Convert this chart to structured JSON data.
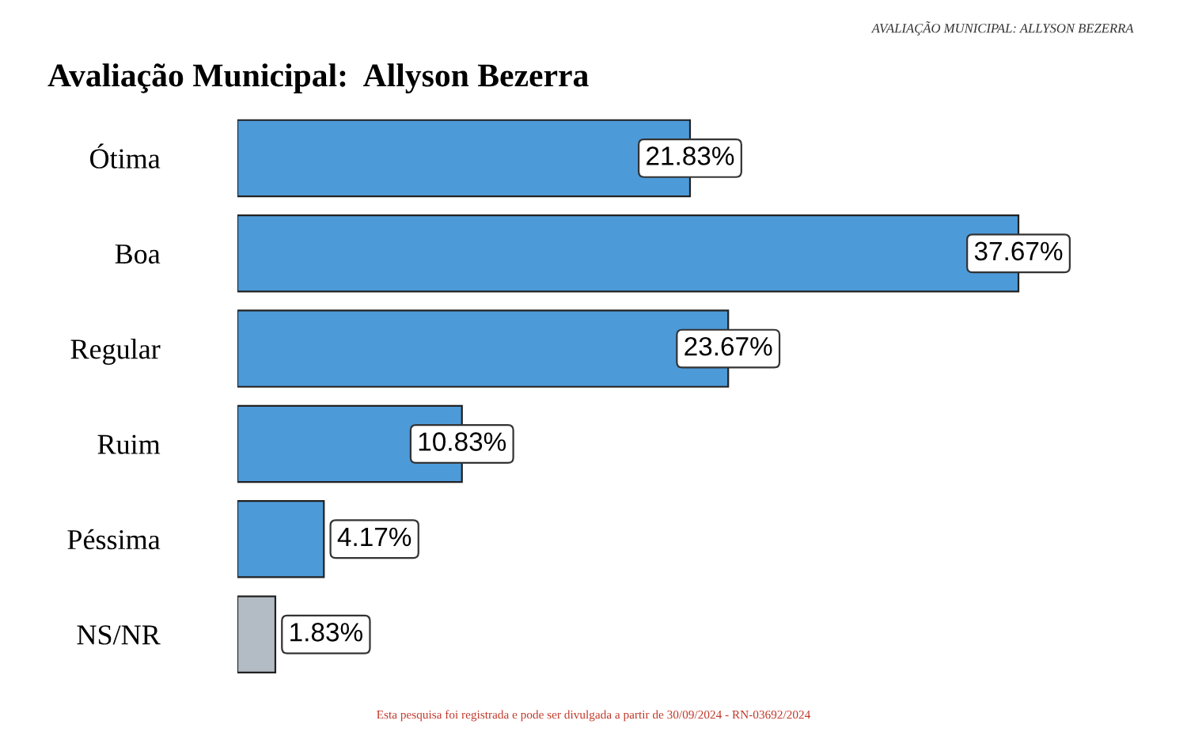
{
  "chart_data": {
    "type": "bar",
    "orientation": "horizontal",
    "title": "Avaliação Municipal:  Allyson Bezerra",
    "categories": [
      "Ótima",
      "Boa",
      "Regular",
      "Ruim",
      "Péssima",
      "NS/NR"
    ],
    "values": [
      21.83,
      37.67,
      23.67,
      10.83,
      4.17,
      1.83
    ],
    "value_labels": [
      "21.83%",
      "37.67%",
      "23.67%",
      "10.83%",
      "4.17%",
      "1.83%"
    ],
    "colors": [
      "#4d9ad8",
      "#4d9ad8",
      "#4d9ad8",
      "#4d9ad8",
      "#4d9ad8",
      "#b3bcc5"
    ],
    "annotations": [
      "AVALIAÇÃO MUNICIPAL: ALLYSON BEZERRA",
      "Esta pesquisa foi registrada e pode ser divulgada a partir de 30/09/2024 - RN-03692/2024"
    ],
    "grid": false,
    "legend": false
  }
}
